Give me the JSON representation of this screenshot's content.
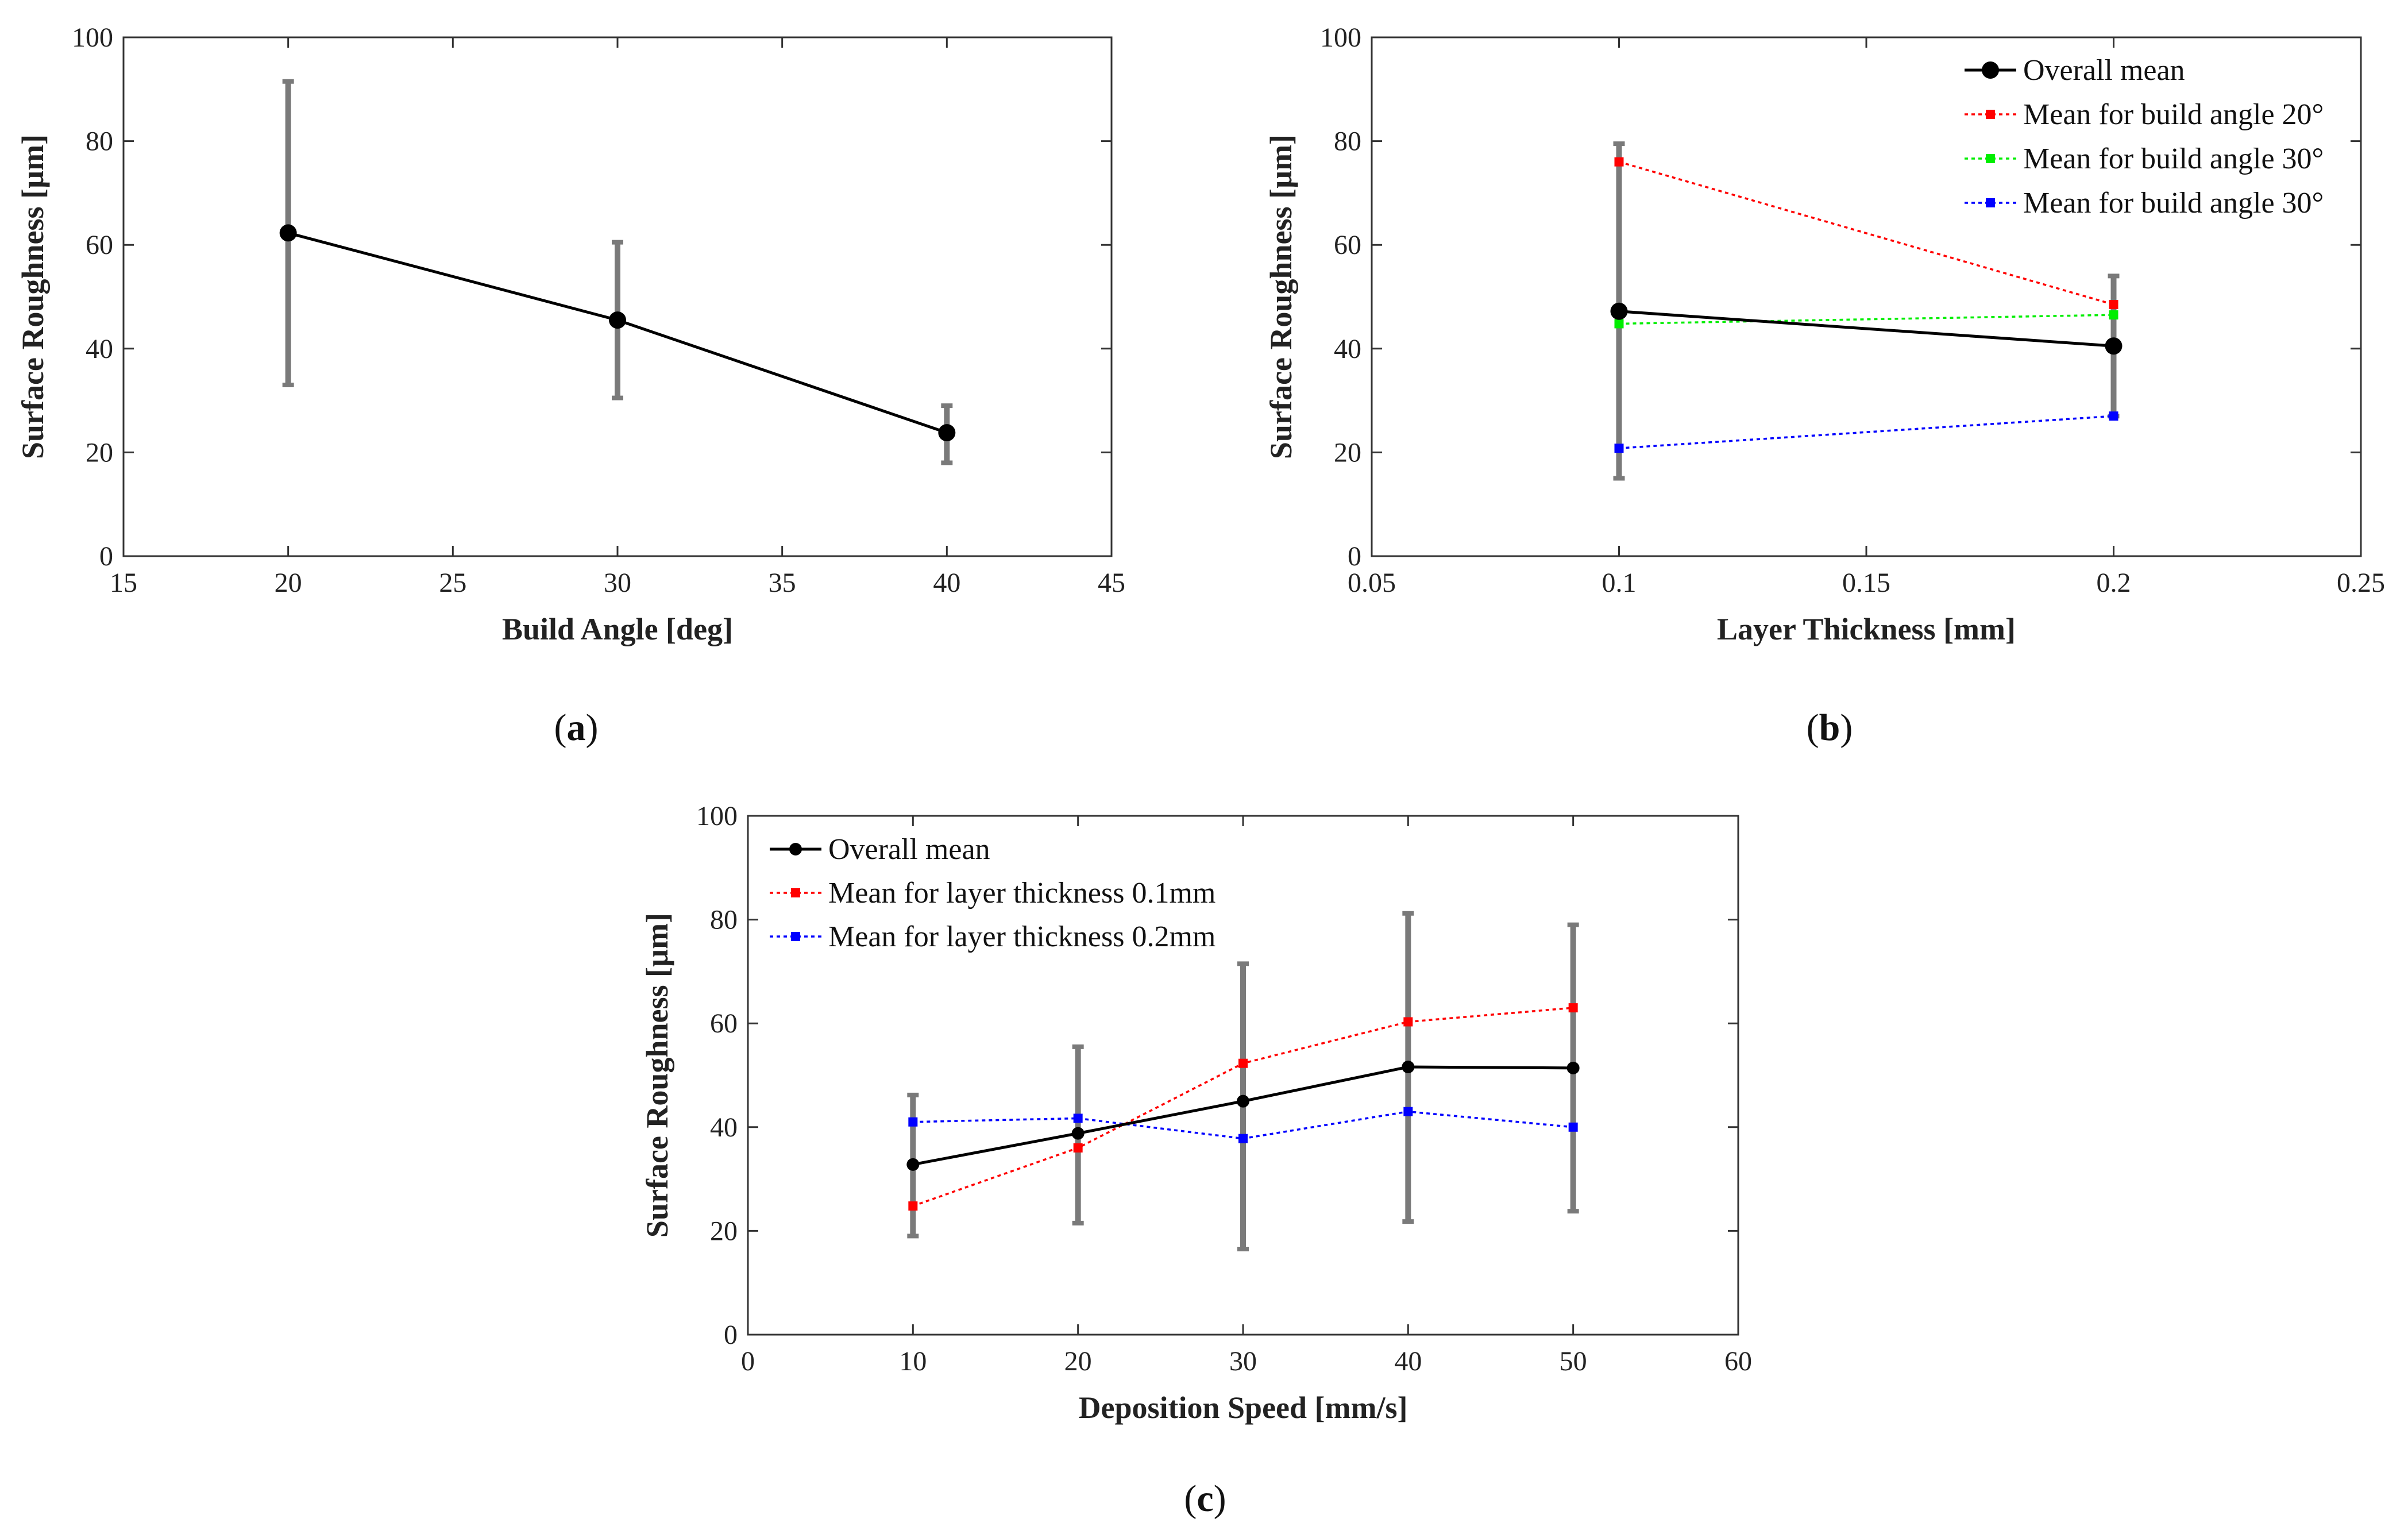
{
  "chart_data": [
    {
      "type": "line",
      "panel": "a",
      "caption": "a",
      "title": "",
      "xlabel": "Build Angle [deg]",
      "ylabel": "Surface Roughness [µm]",
      "xlim": [
        15,
        45
      ],
      "ylim": [
        0,
        100
      ],
      "xticks": [
        15,
        20,
        25,
        30,
        35,
        40,
        45
      ],
      "yticks": [
        0,
        20,
        40,
        60,
        80,
        100
      ],
      "xtick_labels": [
        "15",
        "20",
        "25",
        "30",
        "35",
        "40",
        "45"
      ],
      "ytick_labels": [
        "0",
        "20",
        "40",
        "60",
        "80",
        "100"
      ],
      "legend": [],
      "series": [
        {
          "name": "Overall mean",
          "color": "#000000",
          "style": "solid",
          "marker": "circle",
          "x": [
            20,
            30,
            40
          ],
          "y": [
            62.3,
            45.5,
            23.8
          ],
          "err_low": [
            33,
            30.5,
            18
          ],
          "err_high": [
            91.5,
            60.5,
            29
          ]
        }
      ]
    },
    {
      "type": "line",
      "panel": "b",
      "caption": "b",
      "title": "",
      "xlabel": "Layer Thickness [mm]",
      "ylabel": "Surface Roughness [µm]",
      "xlim": [
        0.05,
        0.25
      ],
      "ylim": [
        0,
        100
      ],
      "xticks": [
        0.05,
        0.1,
        0.15,
        0.2,
        0.25
      ],
      "yticks": [
        0,
        20,
        40,
        60,
        80,
        100
      ],
      "xtick_labels": [
        "0.05",
        "0.1",
        "0.15",
        "0.2",
        "0.25"
      ],
      "ytick_labels": [
        "0",
        "20",
        "40",
        "60",
        "80",
        "100"
      ],
      "legend": [
        "Overall mean",
        "Mean for build angle 20°",
        "Mean for build angle 30°",
        "Mean for build angle 30°"
      ],
      "series": [
        {
          "name": "Overall mean",
          "color": "#000000",
          "style": "solid",
          "marker": "circle",
          "x": [
            0.1,
            0.2
          ],
          "y": [
            47.2,
            40.5
          ],
          "err_low": [
            15,
            27
          ],
          "err_high": [
            79.5,
            54
          ]
        },
        {
          "name": "Mean for build angle 20°",
          "color": "#ff0000",
          "style": "dotted",
          "marker": "square",
          "x": [
            0.1,
            0.2
          ],
          "y": [
            76,
            48.5
          ]
        },
        {
          "name": "Mean for build angle 30°",
          "color": "#00ee00",
          "style": "dotted",
          "marker": "square",
          "x": [
            0.1,
            0.2
          ],
          "y": [
            44.8,
            46.5
          ]
        },
        {
          "name": "Mean for build angle 30°",
          "color": "#0000ff",
          "style": "dotted",
          "marker": "square",
          "x": [
            0.1,
            0.2
          ],
          "y": [
            20.8,
            27
          ]
        }
      ]
    },
    {
      "type": "line",
      "panel": "c",
      "caption": "c",
      "title": "",
      "xlabel": "Deposition Speed [mm/s]",
      "ylabel": "Surface Roughness [µm]",
      "xlim": [
        0,
        60
      ],
      "ylim": [
        0,
        100
      ],
      "xticks": [
        0,
        10,
        20,
        30,
        40,
        50,
        60
      ],
      "yticks": [
        0,
        20,
        40,
        60,
        80,
        100
      ],
      "xtick_labels": [
        "0",
        "10",
        "20",
        "30",
        "40",
        "50",
        "60"
      ],
      "ytick_labels": [
        "0",
        "20",
        "40",
        "60",
        "80",
        "100"
      ],
      "legend": [
        "Overall mean",
        "Mean for layer thickness 0.1mm",
        "Mean for layer thickness 0.2mm"
      ],
      "series": [
        {
          "name": "Overall mean",
          "color": "#000000",
          "style": "solid",
          "marker": "circle",
          "x": [
            10,
            20,
            30,
            40,
            50
          ],
          "y": [
            32.8,
            38.8,
            45,
            51.6,
            51.4
          ],
          "err_low": [
            19,
            21.5,
            16.5,
            21.8,
            23.8
          ],
          "err_high": [
            46.2,
            55.5,
            71.5,
            81.2,
            79
          ]
        },
        {
          "name": "Mean for layer thickness 0.1mm",
          "color": "#ff0000",
          "style": "dotted",
          "marker": "square",
          "x": [
            10,
            20,
            30,
            40,
            50
          ],
          "y": [
            24.8,
            36,
            52.3,
            60.3,
            63
          ]
        },
        {
          "name": "Mean for layer thickness 0.2mm",
          "color": "#0000ff",
          "style": "dotted",
          "marker": "square",
          "x": [
            10,
            20,
            30,
            40,
            50
          ],
          "y": [
            41,
            41.7,
            37.8,
            43,
            40
          ]
        }
      ]
    }
  ]
}
